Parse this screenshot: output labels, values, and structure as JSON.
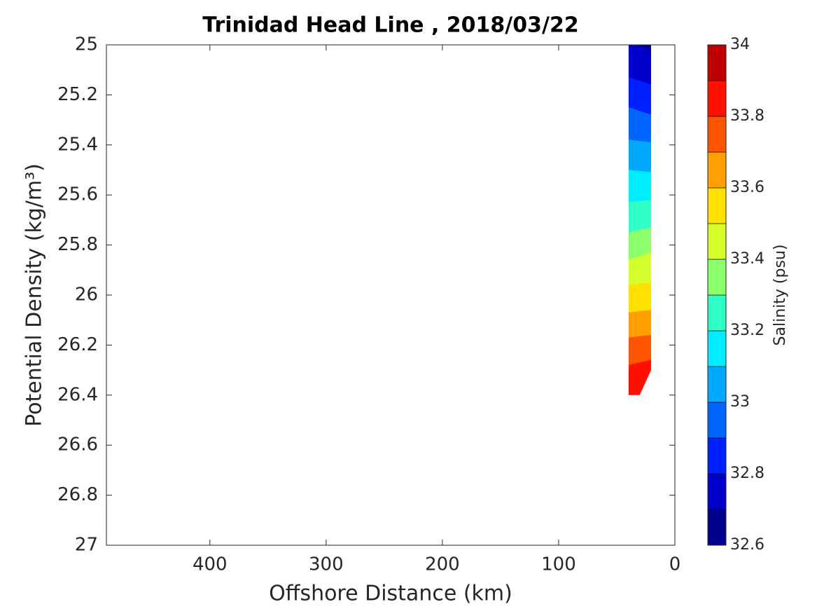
{
  "chart_data": {
    "type": "contourf",
    "title": "Trinidad Head Line , 2018/03/22",
    "xlabel": "Offshore Distance (km)",
    "ylabel": "Potential Density (kg/m³)",
    "xlim": [
      489,
      0
    ],
    "xticks": [
      400,
      300,
      200,
      100,
      0
    ],
    "ylim": [
      25,
      27
    ],
    "yticks": [
      25,
      25.2,
      25.4,
      25.6,
      25.8,
      26,
      26.2,
      26.4,
      26.6,
      26.8,
      27
    ],
    "x": [
      39.8,
      20.5
    ],
    "contours": [
      {
        "level": 32.7,
        "y": [
          24.97,
          25.03
        ]
      },
      {
        "level": 32.8,
        "y": [
          25.13,
          25.16
        ]
      },
      {
        "level": 32.9,
        "y": [
          25.25,
          25.28
        ]
      },
      {
        "level": 33.0,
        "y": [
          25.38,
          25.39
        ]
      },
      {
        "level": 33.1,
        "y": [
          25.5,
          25.51
        ]
      },
      {
        "level": 33.2,
        "y": [
          25.63,
          25.62
        ]
      },
      {
        "level": 33.3,
        "y": [
          25.75,
          25.73
        ]
      },
      {
        "level": 33.4,
        "y": [
          25.86,
          25.83
        ]
      },
      {
        "level": 33.5,
        "y": [
          25.96,
          25.95
        ]
      },
      {
        "level": 33.6,
        "y": [
          26.07,
          26.06
        ]
      },
      {
        "level": 33.7,
        "y": [
          26.17,
          26.16
        ]
      },
      {
        "level": 33.8,
        "y": [
          26.28,
          26.26
        ]
      }
    ],
    "bottom": {
      "x": [
        39.8,
        30.3,
        20.5
      ],
      "y": [
        26.4,
        26.4,
        26.3
      ]
    },
    "colorbar": {
      "label": "Salinity (psu)",
      "levels": [
        32.6,
        32.7,
        32.8,
        32.9,
        33.0,
        33.1,
        33.2,
        33.3,
        33.4,
        33.5,
        33.6,
        33.7,
        33.8,
        33.9,
        34
      ],
      "colors": [
        "#00008f",
        "#0000cc",
        "#0020ff",
        "#0064ff",
        "#00a8ff",
        "#00ecff",
        "#30ffc8",
        "#8cff6c",
        "#d4ff2c",
        "#ffe000",
        "#ffa000",
        "#ff5500",
        "#ff1000",
        "#c00000"
      ],
      "ticks": [
        32.6,
        32.8,
        33,
        33.2,
        33.4,
        33.6,
        33.8,
        34
      ]
    }
  }
}
